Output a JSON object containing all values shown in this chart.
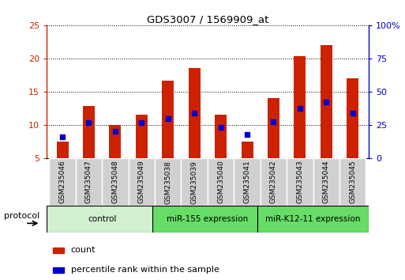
{
  "title": "GDS3007 / 1569909_at",
  "samples": [
    "GSM235046",
    "GSM235047",
    "GSM235048",
    "GSM235049",
    "GSM235038",
    "GSM235039",
    "GSM235040",
    "GSM235041",
    "GSM235042",
    "GSM235043",
    "GSM235044",
    "GSM235045"
  ],
  "count_values": [
    7.5,
    12.8,
    10.0,
    11.6,
    16.6,
    18.6,
    11.6,
    7.5,
    14.0,
    20.3,
    22.0,
    17.0
  ],
  "percentile_values": [
    8.2,
    10.4,
    9.0,
    10.4,
    11.0,
    11.8,
    9.6,
    8.6,
    10.5,
    12.5,
    13.4,
    11.8
  ],
  "ylim_left": [
    5,
    25
  ],
  "ylim_right": [
    0,
    100
  ],
  "yticks_left": [
    5,
    10,
    15,
    20,
    25
  ],
  "yticks_right": [
    0,
    25,
    50,
    75,
    100
  ],
  "ytick_labels_right": [
    "0",
    "25",
    "50",
    "75",
    "100%"
  ],
  "groups": [
    {
      "label": "control",
      "start": 0,
      "end": 4,
      "color": "#d0f0d0"
    },
    {
      "label": "miR-155 expression",
      "start": 4,
      "end": 8,
      "color": "#66dd66"
    },
    {
      "label": "miR-K12-11 expression",
      "start": 8,
      "end": 12,
      "color": "#66dd66"
    }
  ],
  "bar_color": "#cc2200",
  "percentile_color": "#0000cc",
  "bar_width": 0.45,
  "left_axis_color": "#cc2200",
  "right_axis_color": "#0000cc",
  "legend_count_label": "count",
  "legend_percentile_label": "percentile rank within the sample",
  "protocol_label": "protocol"
}
